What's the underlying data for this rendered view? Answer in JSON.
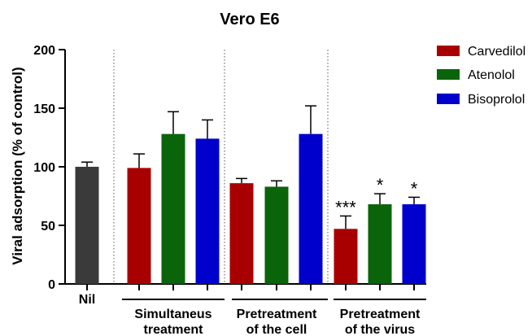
{
  "chart_data": {
    "type": "bar",
    "title": "Vero E6",
    "ylabel": "Viral adsorption (% of control)",
    "xlabel": "",
    "ylim": [
      0,
      200
    ],
    "yticks": [
      0,
      50,
      100,
      150,
      200
    ],
    "grid": false,
    "legend_position": "top-right",
    "groups": [
      {
        "label": "Nil",
        "label_lines": [
          "Nil"
        ]
      },
      {
        "label": "Simultaneus treatment",
        "label_lines": [
          "Simultaneus",
          "treatment"
        ]
      },
      {
        "label": "Pretreatment of the cell",
        "label_lines": [
          "Pretreatment",
          "of the cell"
        ]
      },
      {
        "label": "Pretreatment of the virus",
        "label_lines": [
          "Pretreatment",
          "of the virus"
        ]
      }
    ],
    "series": [
      {
        "name": "Carvedilol",
        "color": "#a80000"
      },
      {
        "name": "Atenolol",
        "color": "#0a640a"
      },
      {
        "name": "Bisoprolol",
        "color": "#0000cc"
      }
    ],
    "bars": [
      {
        "group": 0,
        "series": null,
        "color": "#3a3a3a",
        "value": 100,
        "error": 4,
        "sig": ""
      },
      {
        "group": 1,
        "series": 0,
        "value": 99,
        "error": 12,
        "sig": ""
      },
      {
        "group": 1,
        "series": 1,
        "value": 128,
        "error": 19,
        "sig": ""
      },
      {
        "group": 1,
        "series": 2,
        "value": 124,
        "error": 16,
        "sig": ""
      },
      {
        "group": 2,
        "series": 0,
        "value": 86,
        "error": 4,
        "sig": ""
      },
      {
        "group": 2,
        "series": 1,
        "value": 83,
        "error": 5,
        "sig": ""
      },
      {
        "group": 2,
        "series": 2,
        "value": 128,
        "error": 24,
        "sig": ""
      },
      {
        "group": 3,
        "series": 0,
        "value": 47,
        "error": 11,
        "sig": "***"
      },
      {
        "group": 3,
        "series": 1,
        "value": 68,
        "error": 9,
        "sig": "*"
      },
      {
        "group": 3,
        "series": 2,
        "value": 68,
        "error": 6,
        "sig": "*"
      }
    ]
  }
}
